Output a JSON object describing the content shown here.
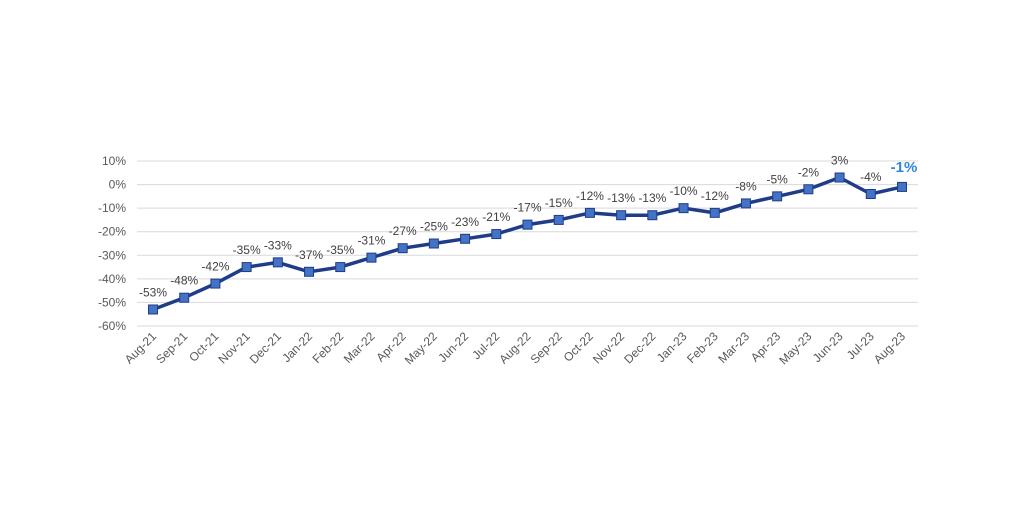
{
  "chart_data": {
    "type": "line",
    "title": "",
    "xlabel": "",
    "ylabel": "",
    "ylim": [
      -60,
      10
    ],
    "yticks": [
      "10%",
      "0%",
      "-10%",
      "-20%",
      "-30%",
      "-40%",
      "-50%",
      "-60%"
    ],
    "ytick_values": [
      10,
      0,
      -10,
      -20,
      -30,
      -40,
      -50,
      -60
    ],
    "grid": "horizontal",
    "legend": "none",
    "categories": [
      "Aug-21",
      "Sep-21",
      "Oct-21",
      "Nov-21",
      "Dec-21",
      "Jan-22",
      "Feb-22",
      "Mar-22",
      "Apr-22",
      "May-22",
      "Jun-22",
      "Jul-22",
      "Aug-22",
      "Sep-22",
      "Oct-22",
      "Nov-22",
      "Dec-22",
      "Jan-23",
      "Feb-23",
      "Mar-23",
      "Apr-23",
      "May-23",
      "Jun-23",
      "Jul-23",
      "Aug-23"
    ],
    "values": [
      -53,
      -48,
      -42,
      -35,
      -33,
      -37,
      -35,
      -31,
      -27,
      -25,
      -23,
      -21,
      -17,
      -15,
      -12,
      -13,
      -13,
      -10,
      -12,
      -8,
      -5,
      -2,
      3,
      -4,
      -1
    ],
    "data_labels": [
      "-53%",
      "-48%",
      "-42%",
      "-35%",
      "-33%",
      "-37%",
      "-35%",
      "-31%",
      "-27%",
      "-25%",
      "-23%",
      "-21%",
      "-17%",
      "-15%",
      "-12%",
      "-13%",
      "-13%",
      "-10%",
      "-12%",
      "-8%",
      "-5%",
      "-2%",
      "3%",
      "-4%",
      "-1%"
    ],
    "colors": {
      "line": "#1f3c88",
      "marker_fill": "#4472c4",
      "marker_stroke": "#1f3c88",
      "grid": "#d9d9d9",
      "highlight_label": "#2e86de"
    }
  }
}
